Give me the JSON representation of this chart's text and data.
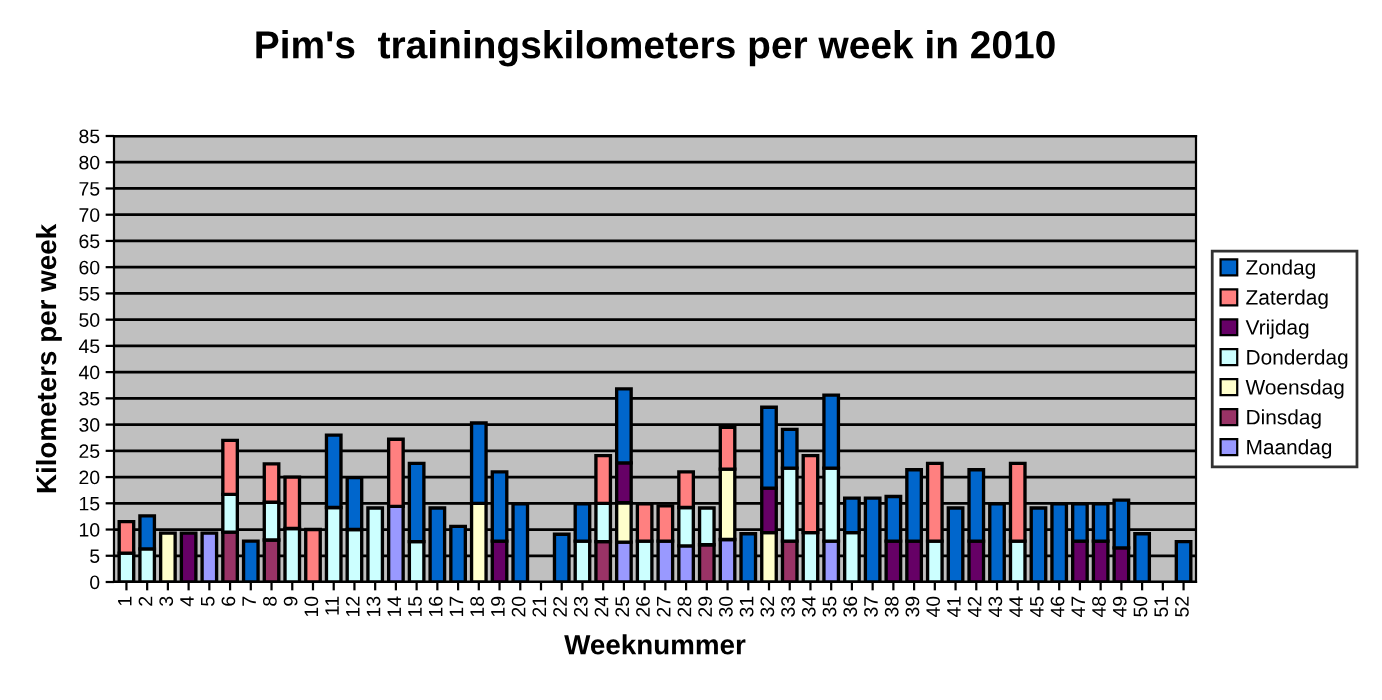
{
  "chart_data": {
    "type": "bar",
    "stacked": true,
    "title": "Pim's  trainingskilometers per week in 2010",
    "xlabel": "Weeknummer",
    "ylabel": "Kilometers per week",
    "categories": [
      "1",
      "2",
      "3",
      "4",
      "5",
      "6",
      "7",
      "8",
      "9",
      "10",
      "11",
      "12",
      "13",
      "14",
      "15",
      "16",
      "17",
      "18",
      "19",
      "20",
      "21",
      "22",
      "23",
      "24",
      "25",
      "26",
      "27",
      "28",
      "29",
      "30",
      "31",
      "32",
      "33",
      "34",
      "35",
      "36",
      "37",
      "38",
      "39",
      "40",
      "41",
      "42",
      "43",
      "44",
      "45",
      "46",
      "47",
      "48",
      "49",
      "50",
      "51",
      "52"
    ],
    "ylim": [
      0,
      85
    ],
    "yticks": [
      0,
      5,
      10,
      15,
      20,
      25,
      30,
      35,
      40,
      45,
      50,
      55,
      60,
      65,
      70,
      75,
      80,
      85
    ],
    "grid": "y",
    "legend": "right",
    "series": [
      {
        "name": "Maandag",
        "color": "#9999ff",
        "values": [
          null,
          null,
          null,
          null,
          9.3,
          null,
          null,
          null,
          null,
          null,
          null,
          null,
          null,
          14.4,
          null,
          null,
          null,
          null,
          null,
          null,
          null,
          null,
          null,
          null,
          7.6,
          null,
          7.8,
          6.9,
          null,
          8.1,
          null,
          null,
          null,
          null,
          7.8,
          null,
          null,
          null,
          null,
          null,
          null,
          null,
          null,
          null,
          null,
          null,
          null,
          null,
          null,
          null,
          null,
          null
        ]
      },
      {
        "name": "Dinsdag",
        "color": "#993366",
        "values": [
          null,
          null,
          null,
          null,
          null,
          9.5,
          null,
          8,
          null,
          null,
          null,
          null,
          null,
          null,
          null,
          null,
          null,
          null,
          null,
          null,
          null,
          null,
          null,
          7.7,
          null,
          null,
          null,
          null,
          7.1,
          null,
          null,
          null,
          7.8,
          null,
          null,
          null,
          null,
          null,
          null,
          null,
          null,
          null,
          null,
          null,
          null,
          null,
          null,
          null,
          null,
          null,
          null,
          null
        ]
      },
      {
        "name": "Woensdag",
        "color": "#ffffcc",
        "values": [
          null,
          null,
          9.3,
          null,
          null,
          null,
          null,
          null,
          null,
          null,
          null,
          null,
          null,
          null,
          null,
          null,
          null,
          15,
          null,
          null,
          null,
          null,
          null,
          null,
          7.5,
          null,
          null,
          null,
          null,
          13.4,
          null,
          9.4,
          null,
          null,
          null,
          null,
          null,
          null,
          null,
          null,
          null,
          null,
          null,
          null,
          null,
          null,
          null,
          null,
          null,
          null,
          null,
          null
        ]
      },
      {
        "name": "Donderdag",
        "color": "#ccffff",
        "values": [
          5.5,
          6.3,
          null,
          null,
          null,
          7.2,
          null,
          7.2,
          10.2,
          null,
          14.2,
          10,
          14.1,
          null,
          7.7,
          null,
          null,
          null,
          null,
          null,
          null,
          null,
          7.8,
          7.3,
          null,
          7.8,
          null,
          7.3,
          7,
          null,
          null,
          null,
          13.9,
          9.4,
          13.9,
          9.4,
          null,
          null,
          null,
          7.8,
          null,
          null,
          null,
          7.8,
          null,
          null,
          null,
          null,
          null,
          null,
          null,
          null
        ]
      },
      {
        "name": "Vrijdag",
        "color": "#660066",
        "values": [
          null,
          null,
          null,
          9.3,
          null,
          null,
          null,
          null,
          null,
          null,
          null,
          null,
          null,
          null,
          null,
          null,
          null,
          null,
          7.8,
          null,
          null,
          null,
          null,
          null,
          7.6,
          null,
          null,
          null,
          null,
          null,
          null,
          8.5,
          null,
          null,
          null,
          null,
          null,
          7.8,
          7.8,
          null,
          null,
          7.8,
          null,
          null,
          null,
          null,
          7.8,
          7.8,
          6.5,
          null,
          null,
          null
        ]
      },
      {
        "name": "Zaterdag",
        "color": "#ff8080",
        "values": [
          6,
          null,
          null,
          null,
          null,
          10.3,
          null,
          7.3,
          9.8,
          10,
          null,
          null,
          null,
          12.8,
          null,
          null,
          null,
          null,
          null,
          null,
          null,
          null,
          null,
          9.1,
          null,
          7.1,
          6.7,
          6.8,
          null,
          8,
          null,
          null,
          null,
          14.7,
          null,
          null,
          null,
          null,
          null,
          14.8,
          null,
          null,
          null,
          14.8,
          null,
          null,
          null,
          null,
          null,
          null,
          null,
          null
        ]
      },
      {
        "name": "Zondag",
        "color": "#0066cc",
        "values": [
          null,
          6.3,
          null,
          null,
          null,
          null,
          7.8,
          null,
          null,
          null,
          13.8,
          9.9,
          null,
          null,
          14.9,
          14.1,
          10.6,
          15.3,
          13.2,
          14.9,
          null,
          9.1,
          7.1,
          null,
          14.1,
          null,
          null,
          null,
          null,
          null,
          9.2,
          15.4,
          7.4,
          null,
          13.9,
          6.6,
          16,
          8.5,
          13.6,
          null,
          14.1,
          13.6,
          14.9,
          null,
          14.1,
          14.9,
          7.1,
          7.1,
          9.1,
          9.2,
          null,
          7.7
        ]
      }
    ]
  }
}
